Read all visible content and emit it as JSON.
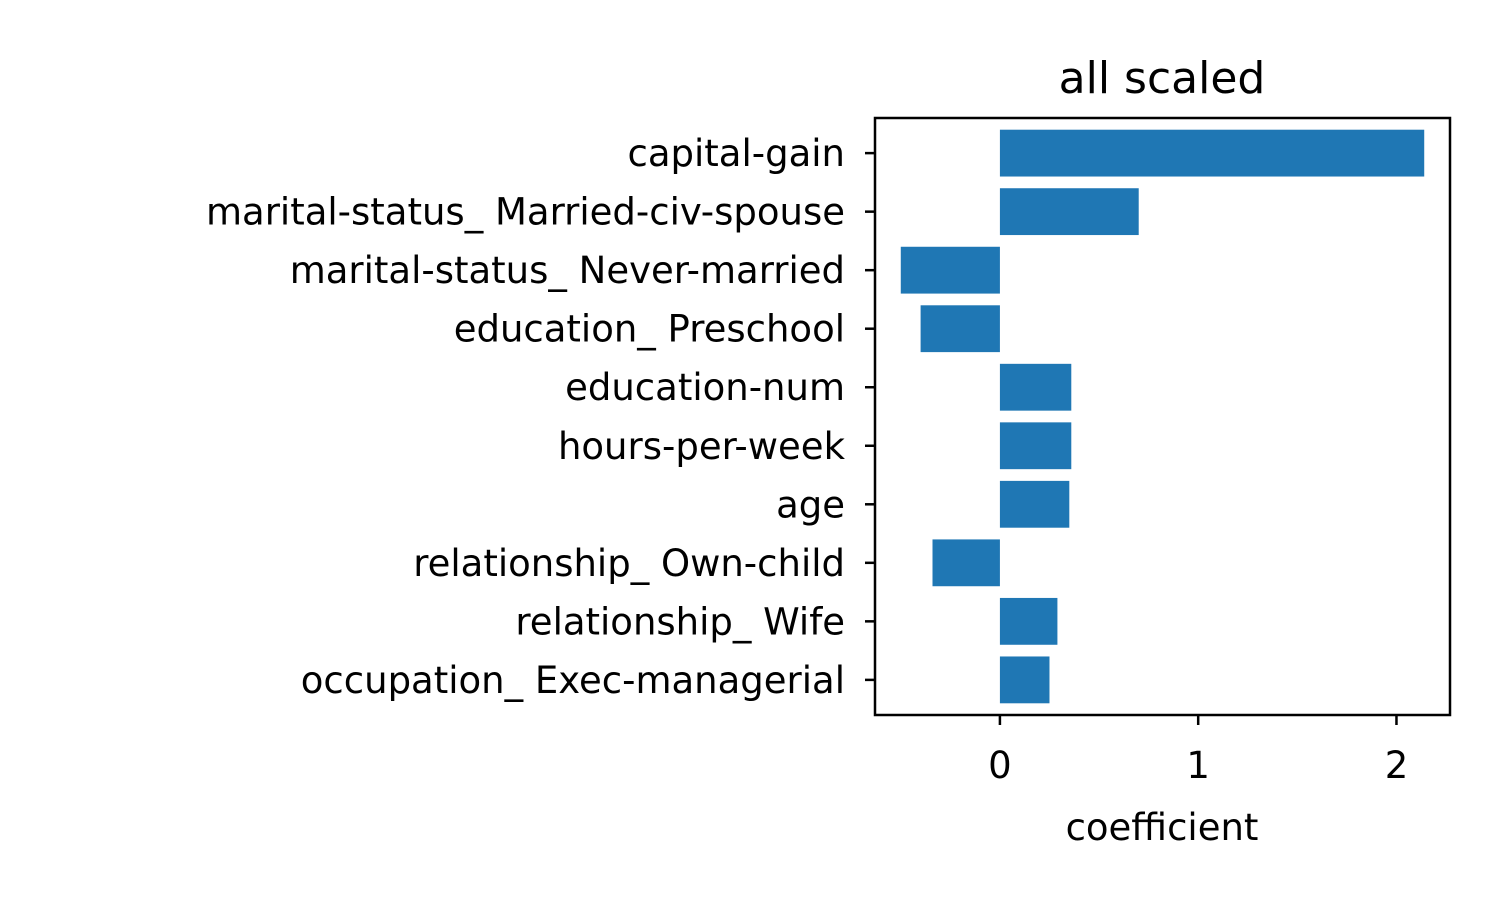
{
  "chart_data": {
    "type": "bar",
    "orientation": "horizontal",
    "title": "all scaled",
    "xlabel": "coefficient",
    "ylabel": "",
    "categories": [
      "capital-gain",
      "marital-status_ Married-civ-spouse",
      "marital-status_ Never-married",
      "education_ Preschool",
      "education-num",
      "hours-per-week",
      "age",
      "relationship_ Own-child",
      "relationship_ Wife",
      "occupation_ Exec-managerial"
    ],
    "values": [
      2.14,
      0.7,
      -0.5,
      -0.4,
      0.36,
      0.36,
      0.35,
      -0.34,
      0.29,
      0.25
    ],
    "xlim": [
      -0.63,
      2.27
    ],
    "xticks": [
      {
        "value": 0,
        "label": "0"
      },
      {
        "value": 1,
        "label": "1"
      },
      {
        "value": 2,
        "label": "2"
      }
    ],
    "grid": false,
    "legend": "none",
    "bar_color": "#1f77b4"
  }
}
